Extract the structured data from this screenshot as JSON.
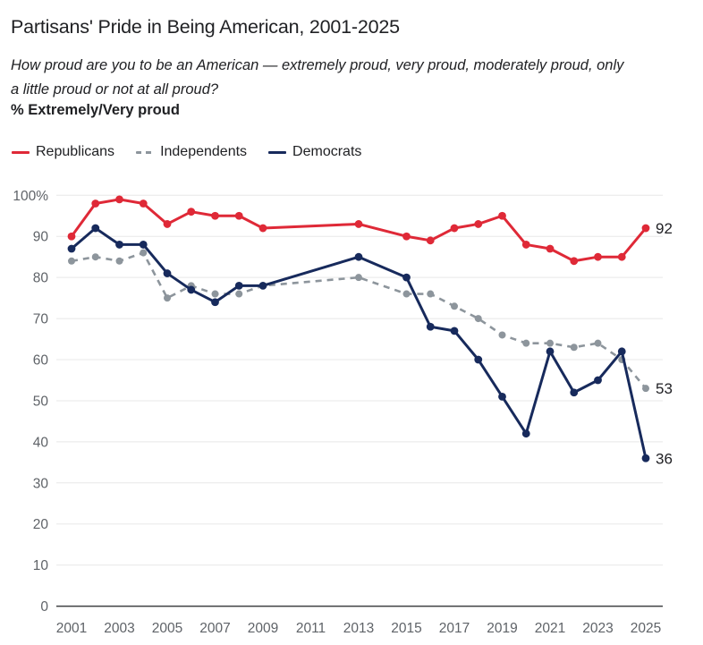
{
  "header": {
    "title": "Partisans' Pride in Being American, 2001-2025",
    "subtitle": "How proud are you to be an American — extremely proud, very proud, moderately proud, only a little proud or not at all proud?",
    "measure_label": "% Extremely/Very proud"
  },
  "legend": [
    {
      "label": "Republicans",
      "color": "#df2937",
      "style": "solid"
    },
    {
      "label": "Independents",
      "color": "#8d959c",
      "style": "dashed"
    },
    {
      "label": "Democrats",
      "color": "#172a5c",
      "style": "solid"
    }
  ],
  "colors": {
    "republicans": "#df2937",
    "independents": "#8d959c",
    "democrats": "#172a5c",
    "gridline": "#e8e8e8",
    "axis_line": "#3f4043",
    "tick_text": "#5f6368",
    "label_text": "#1f1f23"
  },
  "chart_data": {
    "type": "line",
    "title": "Partisans' Pride in Being American, 2001-2025",
    "xlabel": "",
    "ylabel": "% Extremely/Very proud",
    "x": [
      2001,
      2002,
      2003,
      2004,
      2005,
      2006,
      2007,
      2008,
      2009,
      2013,
      2015,
      2016,
      2017,
      2018,
      2019,
      2020,
      2021,
      2022,
      2023,
      2024,
      2025
    ],
    "series": [
      {
        "name": "Republicans",
        "color": "#df2937",
        "dash": false,
        "values": [
          90,
          98,
          99,
          98,
          93,
          96,
          95,
          95,
          92,
          93,
          90,
          89,
          92,
          93,
          95,
          88,
          87,
          84,
          85,
          85,
          92
        ],
        "end_label": "92"
      },
      {
        "name": "Independents",
        "color": "#8d959c",
        "dash": true,
        "values": [
          84,
          85,
          84,
          86,
          75,
          78,
          76,
          76,
          78,
          80,
          76,
          76,
          73,
          70,
          66,
          64,
          64,
          63,
          64,
          60,
          53
        ],
        "end_label": "53"
      },
      {
        "name": "Democrats",
        "color": "#172a5c",
        "dash": false,
        "values": [
          87,
          92,
          88,
          88,
          81,
          77,
          74,
          78,
          78,
          85,
          80,
          68,
          67,
          60,
          51,
          42,
          62,
          52,
          55,
          62,
          36
        ],
        "end_label": "36"
      }
    ],
    "xlim": [
      2001,
      2025
    ],
    "ylim": [
      0,
      100
    ],
    "yticks": [
      0,
      10,
      20,
      30,
      40,
      50,
      60,
      70,
      80,
      90,
      100
    ],
    "ytick_labels": [
      "0",
      "10",
      "20",
      "30",
      "40",
      "50",
      "60",
      "70",
      "80",
      "90",
      "100%"
    ],
    "xticks": [
      2001,
      2003,
      2005,
      2007,
      2009,
      2011,
      2013,
      2015,
      2017,
      2019,
      2021,
      2023,
      2025
    ],
    "xtick_labels": [
      "2001",
      "2003",
      "2005",
      "2007",
      "2009",
      "2011",
      "2013",
      "2015",
      "2017",
      "2019",
      "2021",
      "2023",
      "2025"
    ],
    "grid": true,
    "legend_position": "top-left",
    "markers": true
  }
}
